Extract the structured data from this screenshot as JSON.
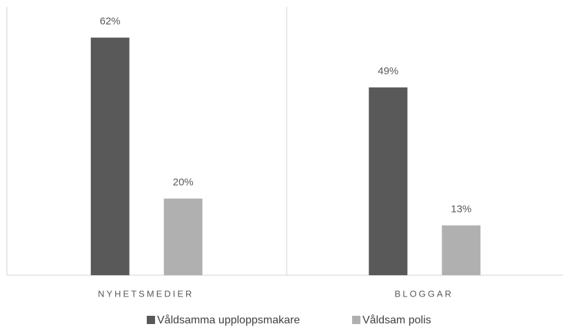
{
  "chart_data": {
    "type": "bar",
    "categories": [
      "NYHETSMEDIER",
      "BLOGGAR"
    ],
    "series": [
      {
        "name": "Våldsamma upploppsmakare",
        "color": "#595959",
        "values": [
          62,
          49
        ],
        "value_labels": [
          "62%",
          "49%"
        ]
      },
      {
        "name": "Våldsam polis",
        "color": "#b0b0b0",
        "values": [
          20,
          13
        ],
        "value_labels": [
          "20%",
          "13%"
        ]
      }
    ],
    "legend": "bottom"
  }
}
